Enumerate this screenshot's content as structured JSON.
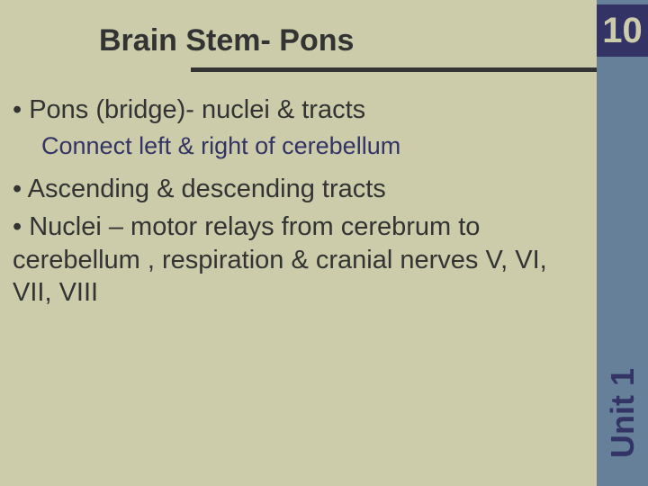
{
  "colors": {
    "main_bg": "#ccccab",
    "sidebar_bg": "#668099",
    "page_number_bg": "#333366",
    "page_number_text": "#ccccab",
    "divider": "#333333",
    "title_text": "#333333",
    "body_text": "#333333",
    "sub_text": "#333366",
    "unit_text": "#333366"
  },
  "typography": {
    "title_size": 34,
    "page_number_size": 40,
    "body_size": 29,
    "sub_size": 27,
    "unit_size": 36
  },
  "title": "Brain Stem- Pons",
  "page_number": "10",
  "bullets": {
    "b1": "• Pons (bridge)- nuclei & tracts",
    "sub1": "Connect left & right of cerebellum",
    "b2": "• Ascending & descending tracts",
    "b3": "• Nuclei – motor relays from cerebrum to cerebellum , respiration & cranial nerves V, VI, VII, VIII"
  },
  "unit_label": "Unit 1"
}
